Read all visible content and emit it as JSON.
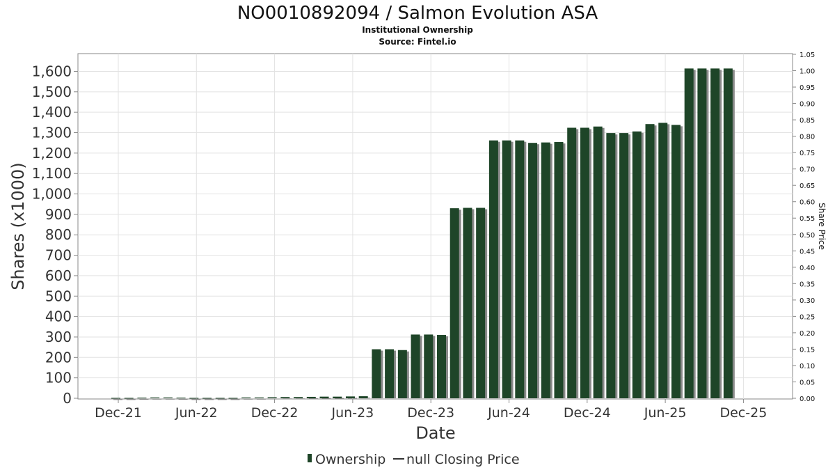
{
  "chart_data": {
    "type": "bar",
    "title": "NO0010892094 / Salmon Evolution ASA",
    "subtitle_lines": [
      "Institutional Ownership",
      "Source: Fintel.io"
    ],
    "xlabel": "Date",
    "ylabel": "Shares (x1000)",
    "y2label": "Share Price",
    "ylim": [
      0,
      1680
    ],
    "y2lim": [
      0,
      1.05
    ],
    "yticks": [
      0,
      100,
      200,
      300,
      400,
      500,
      600,
      700,
      800,
      900,
      1000,
      1100,
      1200,
      1300,
      1400,
      1500,
      1600
    ],
    "ytick_labels": [
      "0",
      "100",
      "200",
      "300",
      "400",
      "500",
      "600",
      "700",
      "800",
      "900",
      "1,000",
      "1,100",
      "1,200",
      "1,300",
      "1,400",
      "1,500",
      "1,600"
    ],
    "y2ticks": [
      "0.00",
      "0.05",
      "0.10",
      "0.15",
      "0.20",
      "0.25",
      "0.30",
      "0.35",
      "0.40",
      "0.45",
      "0.50",
      "0.55",
      "0.60",
      "0.65",
      "0.70",
      "0.75",
      "0.80",
      "0.85",
      "0.90",
      "0.95",
      "1.00",
      "1.05"
    ],
    "xticks": [
      "Dec-21",
      "Jun-22",
      "Dec-22",
      "Jun-23",
      "Dec-23",
      "Jun-24",
      "Dec-24",
      "Jun-25",
      "Dec-25"
    ],
    "grid": true,
    "legend_position": "bottom-center",
    "series": [
      {
        "name": "Ownership",
        "color": "#1e4528",
        "values": [
          2,
          2,
          3,
          4,
          4,
          3,
          2,
          2,
          2,
          2,
          4,
          4,
          5,
          6,
          6,
          7,
          8,
          8,
          9,
          10,
          240,
          240,
          236,
          312,
          312,
          310,
          930,
          932,
          932,
          1262,
          1262,
          1262,
          1250,
          1252,
          1254,
          1324,
          1324,
          1330,
          1298,
          1298,
          1306,
          1342,
          1348,
          1338,
          1614,
          1614,
          1614,
          1614
        ]
      },
      {
        "name": "null Closing Price",
        "color": "#333333",
        "values": []
      }
    ]
  },
  "legend": {
    "ownership_label": "Ownership",
    "price_label": "null Closing Price",
    "ownership_color": "#1e4528",
    "price_color": "#333333"
  }
}
